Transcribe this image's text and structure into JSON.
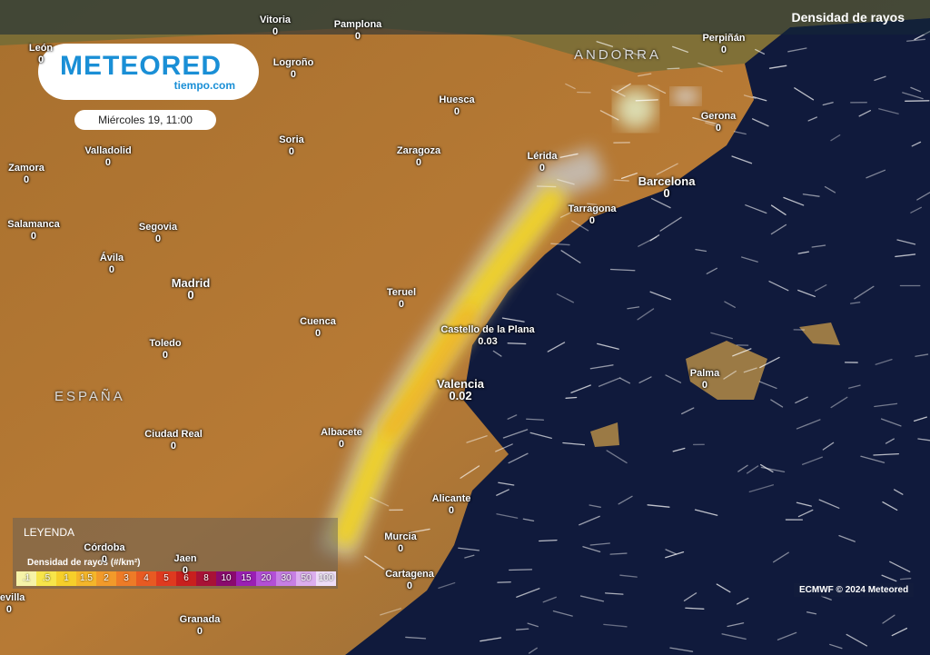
{
  "header": {
    "layer": "Densidad de rayos",
    "date": "Miércoles 19, 11:00",
    "logo": "METEORED",
    "logo_sub": "tiempo.com"
  },
  "regions": [
    "ANDORRA",
    "ESPAÑA"
  ],
  "cities": [
    {
      "name": "Vitoria",
      "value": 0
    },
    {
      "name": "Pamplona",
      "value": 0
    },
    {
      "name": "León",
      "value": 0
    },
    {
      "name": "Logroño",
      "value": 0
    },
    {
      "name": "Perpiñán",
      "value": 0
    },
    {
      "name": "Huesca",
      "value": 0
    },
    {
      "name": "Gerona",
      "value": 0
    },
    {
      "name": "Soria",
      "value": 0
    },
    {
      "name": "Zaragoza",
      "value": 0
    },
    {
      "name": "Valladolid",
      "value": 0
    },
    {
      "name": "Lérida",
      "value": 0
    },
    {
      "name": "Zamora",
      "value": 0
    },
    {
      "name": "Barcelona",
      "value": 0
    },
    {
      "name": "Tarragona",
      "value": 0
    },
    {
      "name": "Salamanca",
      "value": 0
    },
    {
      "name": "Segovia",
      "value": 0
    },
    {
      "name": "Ávila",
      "value": 0
    },
    {
      "name": "Madrid",
      "value": 0
    },
    {
      "name": "Teruel",
      "value": 0
    },
    {
      "name": "Cuenca",
      "value": 0
    },
    {
      "name": "Castello de la Plana",
      "value": 0.03
    },
    {
      "name": "Toledo",
      "value": 0
    },
    {
      "name": "Palma",
      "value": 0
    },
    {
      "name": "Valencia",
      "value": 0.02
    },
    {
      "name": "Albacete",
      "value": 0
    },
    {
      "name": "Ciudad Real",
      "value": 0
    },
    {
      "name": "Alicante",
      "value": 0
    },
    {
      "name": "Murcia",
      "value": 0
    },
    {
      "name": "Córdoba",
      "value": 0
    },
    {
      "name": "Jaen",
      "value": 0
    },
    {
      "name": "Cartagena",
      "value": 0
    },
    {
      "name": "Sevilla",
      "value": 0
    },
    {
      "name": "Granada",
      "value": 0
    }
  ],
  "legend": {
    "title": "LEYENDA",
    "subtitle": "Densidad de rayos (#/km²)",
    "stops": [
      ".1",
      ".5",
      "1",
      "1.5",
      "2",
      "3",
      "4",
      "5",
      "6",
      "8",
      "10",
      "15",
      "20",
      "30",
      "50",
      "100"
    ],
    "colors": [
      "#f6f3a8",
      "#f7e54a",
      "#f6cf2a",
      "#f5b62a",
      "#f29a2a",
      "#ee7b27",
      "#e85a22",
      "#df3a1f",
      "#c8201e",
      "#a81236",
      "#8a0a6e",
      "#9a1fb3",
      "#b34fd6",
      "#c77fe3",
      "#dcaeee",
      "#eeddf7"
    ]
  },
  "credit": "ECMWF © 2024 Meteored"
}
